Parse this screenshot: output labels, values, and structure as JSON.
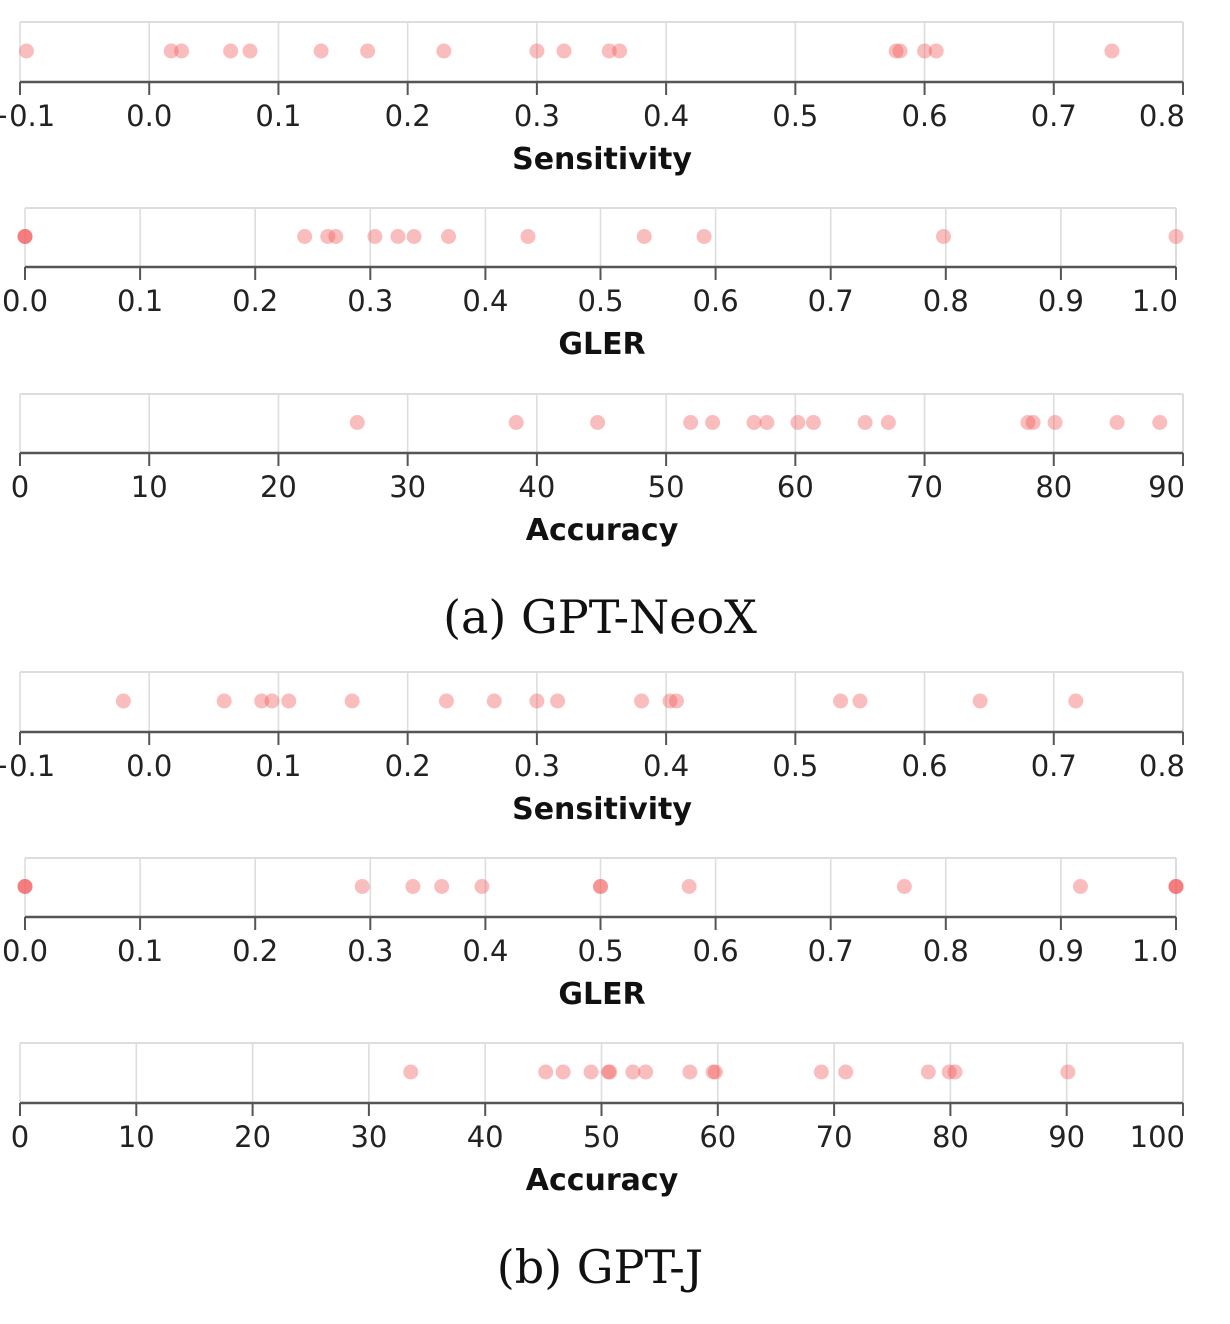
{
  "colors": {
    "point": "#f25b5b",
    "grid": "#dddddd",
    "axis": "#555555"
  },
  "groups": [
    {
      "caption": "(a) GPT-NeoX"
    },
    {
      "caption": "(b) GPT-J"
    }
  ],
  "chart_data": [
    {
      "type": "scatter",
      "group": 0,
      "xlabel": "Sensitivity",
      "xlim": [
        -0.1,
        0.8
      ],
      "ticks": [
        -0.1,
        0.0,
        0.1,
        0.2,
        0.3,
        0.4,
        0.5,
        0.6,
        0.7,
        0.8
      ],
      "tick_labels": [
        "−0.1",
        "0.0",
        "0.1",
        "0.2",
        "0.3",
        "0.4",
        "0.5",
        "0.6",
        "0.7",
        "0.8"
      ],
      "grid": true,
      "x": [
        -0.095,
        0.017,
        0.025,
        0.063,
        0.078,
        0.133,
        0.169,
        0.228,
        0.3,
        0.321,
        0.356,
        0.364,
        0.578,
        0.581,
        0.6,
        0.609,
        0.745
      ]
    },
    {
      "type": "scatter",
      "group": 0,
      "xlabel": "GLER",
      "xlim": [
        0.0,
        1.0
      ],
      "ticks": [
        0.0,
        0.1,
        0.2,
        0.3,
        0.4,
        0.5,
        0.6,
        0.7,
        0.8,
        0.9,
        1.0
      ],
      "tick_labels": [
        "0.0",
        "0.1",
        "0.2",
        "0.3",
        "0.4",
        "0.5",
        "0.6",
        "0.7",
        "0.8",
        "0.9",
        "1.0"
      ],
      "grid": true,
      "x": [
        0.0,
        0.0,
        0.0,
        0.243,
        0.263,
        0.27,
        0.304,
        0.324,
        0.338,
        0.368,
        0.437,
        0.538,
        0.59,
        0.798,
        1.0
      ]
    },
    {
      "type": "scatter",
      "group": 0,
      "xlabel": "Accuracy",
      "xlim": [
        0,
        90
      ],
      "ticks": [
        0,
        10,
        20,
        30,
        40,
        50,
        60,
        70,
        80,
        90
      ],
      "tick_labels": [
        "0",
        "10",
        "20",
        "30",
        "40",
        "50",
        "60",
        "70",
        "80",
        "90"
      ],
      "grid": true,
      "x": [
        26.1,
        38.4,
        44.7,
        51.9,
        53.6,
        56.8,
        57.8,
        60.2,
        61.4,
        65.4,
        67.2,
        78.0,
        78.4,
        80.1,
        84.9,
        88.2
      ]
    },
    {
      "type": "scatter",
      "group": 1,
      "xlabel": "Sensitivity",
      "xlim": [
        -0.1,
        0.8
      ],
      "ticks": [
        -0.1,
        0.0,
        0.1,
        0.2,
        0.3,
        0.4,
        0.5,
        0.6,
        0.7,
        0.8
      ],
      "tick_labels": [
        "−0.1",
        "0.0",
        "0.1",
        "0.2",
        "0.3",
        "0.4",
        "0.5",
        "0.6",
        "0.7",
        "0.8"
      ],
      "grid": true,
      "x": [
        -0.02,
        0.058,
        0.087,
        0.095,
        0.108,
        0.157,
        0.23,
        0.267,
        0.3,
        0.316,
        0.381,
        0.403,
        0.408,
        0.535,
        0.55,
        0.643,
        0.717
      ]
    },
    {
      "type": "scatter",
      "group": 1,
      "xlabel": "GLER",
      "xlim": [
        0.0,
        1.0
      ],
      "ticks": [
        0.0,
        0.1,
        0.2,
        0.3,
        0.4,
        0.5,
        0.6,
        0.7,
        0.8,
        0.9,
        1.0
      ],
      "tick_labels": [
        "0.0",
        "0.1",
        "0.2",
        "0.3",
        "0.4",
        "0.5",
        "0.6",
        "0.7",
        "0.8",
        "0.9",
        "1.0"
      ],
      "grid": true,
      "x": [
        0.0,
        0.0,
        0.0,
        0.293,
        0.337,
        0.362,
        0.397,
        0.5,
        0.5,
        0.577,
        0.764,
        0.917,
        1.0,
        1.0,
        1.0
      ]
    },
    {
      "type": "scatter",
      "group": 1,
      "xlabel": "Accuracy",
      "xlim": [
        0,
        100
      ],
      "ticks": [
        0,
        10,
        20,
        30,
        40,
        50,
        60,
        70,
        80,
        90,
        100
      ],
      "tick_labels": [
        "0",
        "10",
        "20",
        "30",
        "40",
        "50",
        "60",
        "70",
        "80",
        "90",
        "100"
      ],
      "grid": true,
      "x": [
        33.6,
        45.2,
        46.7,
        49.1,
        50.6,
        50.7,
        52.7,
        53.8,
        57.6,
        59.6,
        59.8,
        68.9,
        71.0,
        78.1,
        79.9,
        80.4,
        90.1
      ]
    }
  ]
}
